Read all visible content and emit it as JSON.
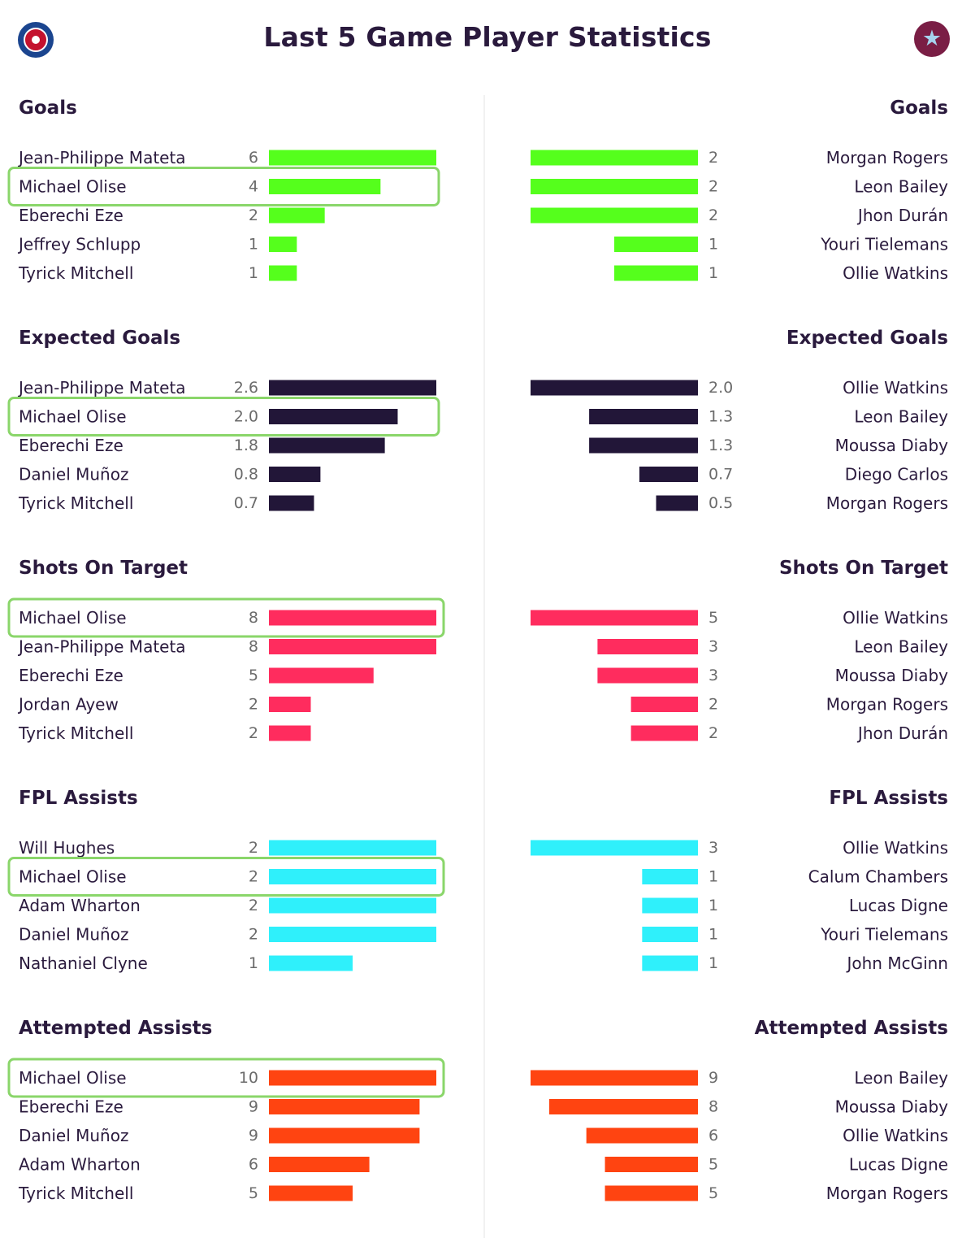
{
  "page": {
    "title": "Last 5 Game Player Statistics"
  },
  "icons": {
    "left_crest": "crystal-palace-crest-icon",
    "right_crest": "aston-villa-crest-icon"
  },
  "colors": {
    "Goals": "#55ff1c",
    "Expected Goals": "#221638",
    "Shots On Target": "#ff2c5e",
    "FPL Assists": "#2ff0fb",
    "Attempted Assists": "#ff4411",
    "highlight": "#8ad66a"
  },
  "chart_data": {
    "type": "bar",
    "orientation": "horizontal",
    "highlighted_player": "Michael Olise",
    "sections": [
      {
        "title": "Goals",
        "left": [
          {
            "name": "Jean-Philippe Mateta",
            "value": 6,
            "label": "6"
          },
          {
            "name": "Michael Olise",
            "value": 4,
            "label": "4"
          },
          {
            "name": "Eberechi Eze",
            "value": 2,
            "label": "2"
          },
          {
            "name": "Jeffrey Schlupp",
            "value": 1,
            "label": "1"
          },
          {
            "name": "Tyrick Mitchell",
            "value": 1,
            "label": "1"
          }
        ],
        "right": [
          {
            "name": "Morgan Rogers",
            "value": 2,
            "label": "2"
          },
          {
            "name": "Leon Bailey",
            "value": 2,
            "label": "2"
          },
          {
            "name": "Jhon Durán",
            "value": 2,
            "label": "2"
          },
          {
            "name": "Youri Tielemans",
            "value": 1,
            "label": "1"
          },
          {
            "name": "Ollie Watkins",
            "value": 1,
            "label": "1"
          }
        ]
      },
      {
        "title": "Expected Goals",
        "left": [
          {
            "name": "Jean-Philippe Mateta",
            "value": 2.6,
            "label": "2.6"
          },
          {
            "name": "Michael Olise",
            "value": 2.0,
            "label": "2.0"
          },
          {
            "name": "Eberechi Eze",
            "value": 1.8,
            "label": "1.8"
          },
          {
            "name": "Daniel Muñoz",
            "value": 0.8,
            "label": "0.8"
          },
          {
            "name": "Tyrick Mitchell",
            "value": 0.7,
            "label": "0.7"
          }
        ],
        "right": [
          {
            "name": "Ollie Watkins",
            "value": 2.0,
            "label": "2.0"
          },
          {
            "name": "Leon Bailey",
            "value": 1.3,
            "label": "1.3"
          },
          {
            "name": "Moussa Diaby",
            "value": 1.3,
            "label": "1.3"
          },
          {
            "name": "Diego Carlos",
            "value": 0.7,
            "label": "0.7"
          },
          {
            "name": "Morgan Rogers",
            "value": 0.5,
            "label": "0.5"
          }
        ]
      },
      {
        "title": "Shots On Target",
        "left": [
          {
            "name": "Michael Olise",
            "value": 8,
            "label": "8"
          },
          {
            "name": "Jean-Philippe Mateta",
            "value": 8,
            "label": "8"
          },
          {
            "name": "Eberechi Eze",
            "value": 5,
            "label": "5"
          },
          {
            "name": "Jordan Ayew",
            "value": 2,
            "label": "2"
          },
          {
            "name": "Tyrick Mitchell",
            "value": 2,
            "label": "2"
          }
        ],
        "right": [
          {
            "name": "Ollie Watkins",
            "value": 5,
            "label": "5"
          },
          {
            "name": "Leon Bailey",
            "value": 3,
            "label": "3"
          },
          {
            "name": "Moussa Diaby",
            "value": 3,
            "label": "3"
          },
          {
            "name": "Morgan Rogers",
            "value": 2,
            "label": "2"
          },
          {
            "name": "Jhon Durán",
            "value": 2,
            "label": "2"
          }
        ]
      },
      {
        "title": "FPL Assists",
        "left": [
          {
            "name": "Will Hughes",
            "value": 2,
            "label": "2"
          },
          {
            "name": "Michael Olise",
            "value": 2,
            "label": "2"
          },
          {
            "name": "Adam Wharton",
            "value": 2,
            "label": "2"
          },
          {
            "name": "Daniel Muñoz",
            "value": 2,
            "label": "2"
          },
          {
            "name": "Nathaniel Clyne",
            "value": 1,
            "label": "1"
          }
        ],
        "right": [
          {
            "name": "Ollie Watkins",
            "value": 3,
            "label": "3"
          },
          {
            "name": "Calum Chambers",
            "value": 1,
            "label": "1"
          },
          {
            "name": "Lucas Digne",
            "value": 1,
            "label": "1"
          },
          {
            "name": "Youri Tielemans",
            "value": 1,
            "label": "1"
          },
          {
            "name": "John McGinn",
            "value": 1,
            "label": "1"
          }
        ]
      },
      {
        "title": "Attempted Assists",
        "left": [
          {
            "name": "Michael Olise",
            "value": 10,
            "label": "10"
          },
          {
            "name": "Eberechi Eze",
            "value": 9,
            "label": "9"
          },
          {
            "name": "Daniel Muñoz",
            "value": 9,
            "label": "9"
          },
          {
            "name": "Adam Wharton",
            "value": 6,
            "label": "6"
          },
          {
            "name": "Tyrick Mitchell",
            "value": 5,
            "label": "5"
          }
        ],
        "right": [
          {
            "name": "Leon Bailey",
            "value": 9,
            "label": "9"
          },
          {
            "name": "Moussa Diaby",
            "value": 8,
            "label": "8"
          },
          {
            "name": "Ollie Watkins",
            "value": 6,
            "label": "6"
          },
          {
            "name": "Lucas Digne",
            "value": 5,
            "label": "5"
          },
          {
            "name": "Morgan Rogers",
            "value": 5,
            "label": "5"
          }
        ]
      }
    ]
  }
}
